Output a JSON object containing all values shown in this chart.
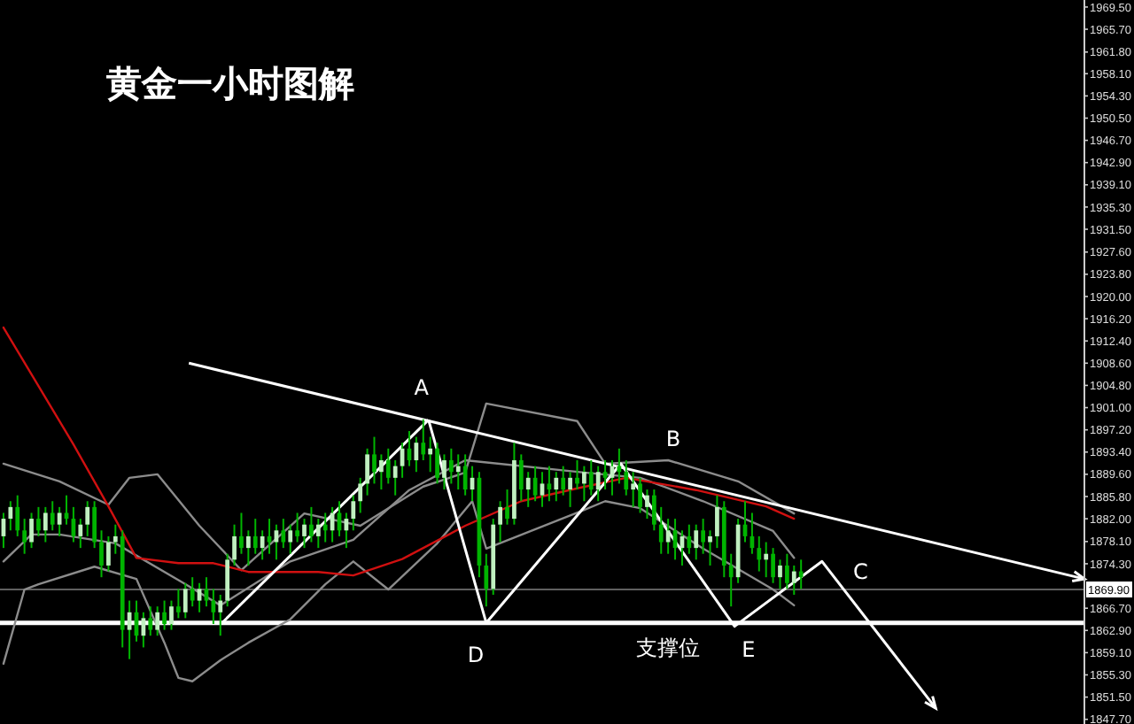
{
  "chart_data": {
    "type": "candlestick",
    "title": "黄金一小时图解",
    "tick_labels": "y",
    "categories": [
      null,
      null,
      null,
      null,
      null,
      null,
      null,
      null,
      null,
      null,
      null,
      null,
      null,
      null,
      null,
      null,
      null,
      null,
      null,
      null,
      null,
      null,
      null,
      null,
      null,
      null,
      null,
      null,
      null,
      null,
      null,
      null,
      null,
      null,
      null,
      null,
      null,
      null,
      null,
      null,
      null,
      null,
      null,
      null,
      null,
      null,
      null,
      null,
      null,
      null,
      null,
      null,
      null,
      null,
      null,
      null,
      null,
      null,
      null,
      null,
      null,
      null,
      null,
      null,
      null,
      null,
      null,
      null,
      null,
      null,
      null,
      null,
      null,
      null,
      null,
      null,
      null,
      null,
      null,
      null,
      null,
      null,
      null,
      null,
      null,
      null,
      null,
      null,
      null,
      null,
      null,
      null,
      null,
      null,
      null,
      null,
      null,
      null,
      null,
      null,
      null,
      null,
      null,
      null,
      null,
      null,
      null,
      null,
      null,
      null,
      null,
      null,
      null,
      null,
      null,
      null,
      null,
      null,
      null,
      null,
      null,
      null,
      null,
      null,
      null,
      null,
      null,
      null,
      null,
      null,
      null,
      null,
      null,
      null,
      null,
      null,
      null,
      null,
      null,
      null,
      null,
      null,
      null,
      null,
      null,
      null,
      null,
      null,
      null,
      null,
      null,
      null,
      null,
      null,
      null
    ],
    "ylim": [
      1846.9,
      1970.7
    ],
    "yticks": [
      {
        "value": 1969.5,
        "label": "1969.50"
      },
      {
        "value": 1965.7,
        "label": "1965.70"
      },
      {
        "value": 1961.8,
        "label": "1961.80"
      },
      {
        "value": 1958.1,
        "label": "1958.10"
      },
      {
        "value": 1954.3,
        "label": "1954.30"
      },
      {
        "value": 1950.5,
        "label": "1950.50"
      },
      {
        "value": 1946.7,
        "label": "1946.70"
      },
      {
        "value": 1942.9,
        "label": "1942.90"
      },
      {
        "value": 1939.1,
        "label": "1939.10"
      },
      {
        "value": 1935.3,
        "label": "1935.30"
      },
      {
        "value": 1931.5,
        "label": "1931.50"
      },
      {
        "value": 1927.6,
        "label": "1927.60"
      },
      {
        "value": 1923.8,
        "label": "1923.80"
      },
      {
        "value": 1920,
        "label": "1920.00"
      },
      {
        "value": 1916.2,
        "label": "1916.20"
      },
      {
        "value": 1912.4,
        "label": "1912.40"
      },
      {
        "value": 1908.6,
        "label": "1908.60"
      },
      {
        "value": 1904.8,
        "label": "1904.80"
      },
      {
        "value": 1901,
        "label": "1901.00"
      },
      {
        "value": 1897.2,
        "label": "1897.20"
      },
      {
        "value": 1893.4,
        "label": "1893.40"
      },
      {
        "value": 1889.6,
        "label": "1889.60"
      },
      {
        "value": 1885.8,
        "label": "1885.80"
      },
      {
        "value": 1882,
        "label": "1882.00"
      },
      {
        "value": 1878.1,
        "label": "1878.10"
      },
      {
        "value": 1874.3,
        "label": "1874.30"
      },
      {
        "value": 1866.7,
        "label": "1866.70"
      },
      {
        "value": 1862.9,
        "label": "1862.90"
      },
      {
        "value": 1859.1,
        "label": "1859.10"
      },
      {
        "value": 1855.3,
        "label": "1855.30"
      },
      {
        "value": 1851.5,
        "label": "1851.50"
      },
      {
        "value": 1847.7,
        "label": "1847.70"
      }
    ],
    "ref_lines": [
      {
        "axis": "y",
        "value": 1869.9,
        "label": "1869.90",
        "color": "#808080"
      },
      {
        "axis": "y",
        "value": 1864.2,
        "label": "支撑位",
        "color": "#ffffff"
      }
    ],
    "annotations": [
      "A",
      "B",
      "C",
      "D",
      "E"
    ],
    "series": [
      {
        "type": "line",
        "color": "#8c8c8c",
        "values": [
          1891.4,
          null,
          null,
          null,
          null,
          null,
          null,
          null,
          1888.4,
          null,
          null,
          null,
          null,
          null,
          null,
          1884.4,
          null,
          null,
          1889.0,
          null,
          null,
          null,
          1889.6,
          null,
          null,
          null,
          null,
          null,
          1880.8,
          null,
          null,
          null,
          null,
          null,
          1873.2,
          null,
          null,
          null,
          null,
          null,
          null,
          null,
          null,
          1882.9,
          null,
          null,
          null,
          null,
          null,
          null,
          null,
          1880.8,
          null,
          null,
          null,
          null,
          null,
          null,
          null,
          null,
          1887.5,
          null,
          null,
          null,
          null,
          null,
          1889.9,
          null,
          null,
          1901.7,
          null,
          null,
          null,
          null,
          null,
          null,
          null,
          null,
          null,
          null,
          null,
          null,
          1898.7,
          null,
          null,
          null,
          1891.4,
          null,
          null,
          null,
          null,
          null,
          null,
          null,
          null,
          1892.0,
          null,
          null,
          null,
          null,
          null,
          null,
          null,
          null,
          null,
          1888.4,
          null,
          null,
          null,
          null,
          null,
          null,
          null,
          1882.9,
          null,
          null,
          null,
          null,
          null,
          null,
          null,
          null,
          null,
          null,
          null,
          null,
          null,
          null,
          null,
          null,
          null,
          null,
          null,
          null,
          null,
          null,
          null,
          null,
          null,
          null,
          null,
          null,
          null,
          null,
          null,
          null,
          null,
          null,
          null,
          null,
          null,
          null,
          null,
          null,
          null
        ]
      },
      {
        "type": "line",
        "color": "#8c8c8c",
        "values": [
          1874.7,
          null,
          null,
          null,
          1879.3,
          null,
          null,
          null,
          1879.3,
          null,
          null,
          null,
          null,
          null,
          null,
          null,
          1877.8,
          null,
          null,
          null,
          null,
          null,
          null,
          null,
          null,
          null,
          1870.8,
          null,
          null,
          null,
          null,
          1867.2,
          null,
          null,
          null,
          null,
          null,
          null,
          null,
          null,
          null,
          1874.7,
          null,
          null,
          null,
          null,
          null,
          null,
          null,
          null,
          1878.4,
          null,
          null,
          null,
          null,
          null,
          null,
          null,
          1886.9,
          null,
          null,
          null,
          null,
          null,
          null,
          null,
          1892.0,
          null,
          null,
          null,
          null,
          null,
          null,
          null,
          null,
          null,
          null,
          null,
          null,
          null,
          null,
          null,
          null,
          1889.9,
          null,
          null,
          null,
          null,
          null,
          null,
          null,
          1889.0,
          null,
          null,
          null,
          null,
          null,
          null,
          null,
          null,
          1885.0,
          null,
          null,
          null,
          null,
          null,
          null,
          null,
          null,
          null,
          1879.9,
          null,
          null,
          1875.3,
          null,
          null,
          null,
          null,
          null,
          null,
          null,
          null,
          null,
          null,
          null,
          null,
          null,
          null,
          null,
          null,
          null,
          null,
          null,
          null,
          null,
          null,
          null,
          null,
          null,
          null,
          null,
          null,
          null,
          null,
          null,
          null,
          null,
          null,
          null,
          null,
          null,
          null,
          null,
          null,
          null
        ]
      },
      {
        "type": "line",
        "color": "#8c8c8c",
        "values": [
          1857.2,
          null,
          null,
          1869.9,
          null,
          1870.8,
          null,
          null,
          null,
          null,
          null,
          null,
          null,
          1873.8,
          null,
          null,
          null,
          null,
          null,
          1871.7,
          null,
          null,
          null,
          1860.8,
          null,
          1854.8,
          null,
          1854.2,
          null,
          null,
          null,
          1857.8,
          null,
          null,
          null,
          1860.8,
          null,
          null,
          null,
          null,
          null,
          1864.8,
          null,
          null,
          null,
          null,
          1870.8,
          null,
          null,
          null,
          1874.7,
          null,
          null,
          null,
          null,
          1869.9,
          null,
          null,
          null,
          null,
          null,
          null,
          1877.8,
          null,
          null,
          null,
          null,
          1885.0,
          null,
          1876.9,
          null,
          null,
          null,
          null,
          null,
          null,
          null,
          null,
          null,
          null,
          null,
          null,
          null,
          1883.5,
          null,
          null,
          1885.0,
          null,
          null,
          null,
          null,
          1883.8,
          null,
          null,
          null,
          null,
          null,
          null,
          null,
          null,
          1876.9,
          null,
          null,
          null,
          null,
          null,
          null,
          null,
          null,
          null,
          1869.9,
          null,
          null,
          1867.2,
          null,
          null,
          null,
          null,
          null,
          null,
          null,
          null,
          null,
          null,
          null,
          null,
          null,
          null,
          null,
          null,
          null,
          null,
          null,
          null,
          null,
          null,
          null,
          null,
          null,
          null,
          null,
          null,
          null,
          null,
          null,
          null,
          null,
          null,
          null,
          null,
          null,
          null,
          null,
          null,
          null
        ]
      },
      {
        "type": "line",
        "color": "#d01010",
        "values": [
          1914.7,
          null,
          null,
          null,
          null,
          1904.7,
          null,
          null,
          null,
          null,
          1894.7,
          null,
          null,
          null,
          null,
          1884.1,
          null,
          null,
          null,
          1875.3,
          null,
          null,
          null,
          null,
          null,
          1874.4,
          null,
          null,
          null,
          null,
          1874.4,
          null,
          null,
          null,
          null,
          1872.9,
          null,
          null,
          null,
          null,
          null,
          null,
          null,
          null,
          null,
          1872.9,
          null,
          null,
          null,
          null,
          1872.3,
          null,
          null,
          null,
          null,
          null,
          null,
          1875.1,
          null,
          null,
          null,
          null,
          null,
          null,
          null,
          null,
          1880.8,
          null,
          null,
          null,
          null,
          null,
          null,
          null,
          1885.0,
          null,
          null,
          null,
          null,
          null,
          null,
          null,
          1887.2,
          null,
          null,
          null,
          null,
          null,
          null,
          1889.0,
          null,
          null,
          null,
          null,
          null,
          null,
          null,
          null,
          null,
          1886.9,
          null,
          null,
          null,
          null,
          null,
          null,
          null,
          null,
          null,
          1884.1,
          null,
          null,
          null,
          1882.0,
          null,
          null,
          null,
          null,
          null,
          null,
          null,
          null,
          null,
          null,
          null,
          null,
          null,
          null,
          null,
          null,
          null,
          null,
          null,
          null,
          null,
          null,
          null,
          null,
          null,
          null,
          null,
          null,
          null,
          null,
          null,
          null,
          null,
          null,
          null,
          null,
          null,
          null,
          null,
          null,
          null
        ]
      },
      {
        "color": "#00b400",
        "colors": [
          "#c0f0c0",
          "#c0f0c0",
          "#00b400",
          "#00b400",
          "#c0f0c0",
          "#00b400",
          "#c0f0c0",
          "#00b400",
          "#c0f0c0",
          "#00b400",
          "#00b400",
          "#c0f0c0",
          "#c0f0c0",
          "#00b400",
          "#00b400",
          "#c0f0c0",
          "#c0f0c0",
          "#00b400",
          "#c0f0c0",
          "#00b400",
          "#c0f0c0",
          "#00b400",
          "#c0f0c0",
          "#00b400",
          "#c0f0c0",
          "#00b400",
          "#c0f0c0",
          "#00b400",
          "#c0f0c0",
          "#00b400",
          "#00b400",
          "#c0f0c0",
          "#c0f0c0",
          "#c0f0c0",
          "#00b400",
          "#c0f0c0",
          "#00b400",
          "#c0f0c0",
          "#00b400",
          "#c0f0c0",
          "#00b400",
          "#c0f0c0",
          "#00b400",
          "#c0f0c0",
          "#00b400",
          "#c0f0c0",
          "#00b400",
          "#c0f0c0",
          "#00b400",
          "#c0f0c0",
          "#c0f0c0",
          "#c0f0c0",
          "#c0f0c0",
          "#00b400",
          "#c0f0c0",
          "#00b400",
          "#c0f0c0",
          "#c0f0c0",
          "#00b400",
          "#c0f0c0",
          "#00b400",
          "#c0f0c0",
          "#00b400",
          "#c0f0c0",
          "#00b400",
          "#c0f0c0",
          "#00b400",
          "#c0f0c0",
          "#00b400",
          "#00b400",
          "#c0f0c0",
          "#c0f0c0",
          "#00b400",
          "#c0f0c0",
          "#00b400",
          "#c0f0c0",
          "#00b400",
          "#c0f0c0",
          "#00b400",
          "#c0f0c0",
          "#00b400",
          "#c0f0c0",
          "#00b400",
          "#c0f0c0",
          "#00b400",
          "#c0f0c0",
          "#00b400",
          "#c0f0c0",
          "#00b400",
          "#00b400",
          "#c0f0c0",
          "#00b400",
          "#c0f0c0",
          "#00b400",
          "#00b400",
          "#c0f0c0",
          "#00b400",
          "#c0f0c0",
          "#00b400",
          "#c0f0c0",
          "#00b400",
          "#c0f0c0",
          "#c0f0c0",
          "#00b400",
          "#00b400",
          "#c0f0c0",
          "#00b400",
          "#00b400",
          "#00b400",
          "#c0f0c0",
          "#00b400",
          "#c0f0c0",
          "#00b400",
          "#c0f0c0",
          "#00b400",
          null,
          null,
          null,
          null,
          null,
          null,
          null,
          null,
          null,
          null,
          null,
          null,
          null,
          null,
          null,
          null,
          null,
          null,
          null,
          null,
          null,
          null,
          null,
          null,
          null,
          null,
          null,
          null,
          null,
          null,
          null,
          null,
          null,
          null,
          null,
          null,
          null,
          null,
          null,
          null
        ],
        "ohlc": [
          [
            1879,
            1883,
            1877,
            1882
          ],
          [
            1882,
            1885,
            1880,
            1884
          ],
          [
            1884,
            1886,
            1879,
            1880
          ],
          [
            1880,
            1882,
            1876,
            1878
          ],
          [
            1878,
            1883,
            1877,
            1882
          ],
          [
            1882,
            1884,
            1879,
            1880
          ],
          [
            1880,
            1884,
            1878,
            1883
          ],
          [
            1883,
            1885,
            1880,
            1881
          ],
          [
            1881,
            1884,
            1879,
            1883
          ],
          [
            1883,
            1886,
            1881,
            1882
          ],
          [
            1882,
            1884,
            1878,
            1879
          ],
          [
            1879,
            1882,
            1877,
            1881
          ],
          [
            1881,
            1885,
            1879,
            1884
          ],
          [
            1884,
            1885,
            1877,
            1878
          ],
          [
            1878,
            1880,
            1872,
            1874
          ],
          [
            1874,
            1879,
            1873,
            1878
          ],
          [
            1878,
            1881,
            1876,
            1879
          ],
          [
            1879,
            1880,
            1860,
            1863
          ],
          [
            1863,
            1868,
            1858,
            1866
          ],
          [
            1866,
            1868,
            1861,
            1862
          ],
          [
            1862,
            1866,
            1860,
            1865
          ],
          [
            1865,
            1867,
            1862,
            1863
          ],
          [
            1863,
            1867,
            1862,
            1866
          ],
          [
            1866,
            1868,
            1863,
            1864
          ],
          [
            1864,
            1868,
            1863,
            1867
          ],
          [
            1867,
            1870,
            1865,
            1866
          ],
          [
            1866,
            1871,
            1865,
            1870
          ],
          [
            1870,
            1872,
            1867,
            1868
          ],
          [
            1868,
            1871,
            1866,
            1870
          ],
          [
            1870,
            1872,
            1867,
            1868
          ],
          [
            1868,
            1870,
            1864,
            1866
          ],
          [
            1866,
            1869,
            1862,
            1868
          ],
          [
            1868,
            1876,
            1867,
            1875
          ],
          [
            1875,
            1881,
            1874,
            1879
          ],
          [
            1879,
            1883,
            1876,
            1877
          ],
          [
            1877,
            1880,
            1874,
            1879
          ],
          [
            1879,
            1882,
            1876,
            1877
          ],
          [
            1877,
            1880,
            1875,
            1879
          ],
          [
            1879,
            1882,
            1876,
            1878
          ],
          [
            1878,
            1881,
            1875,
            1880
          ],
          [
            1880,
            1882,
            1877,
            1878
          ],
          [
            1878,
            1881,
            1876,
            1880
          ],
          [
            1880,
            1883,
            1878,
            1879
          ],
          [
            1879,
            1882,
            1877,
            1881
          ],
          [
            1881,
            1884,
            1878,
            1879
          ],
          [
            1879,
            1882,
            1877,
            1881
          ],
          [
            1881,
            1883,
            1878,
            1880
          ],
          [
            1880,
            1884,
            1878,
            1883
          ],
          [
            1883,
            1885,
            1879,
            1880
          ],
          [
            1880,
            1883,
            1877,
            1882
          ],
          [
            1882,
            1886,
            1880,
            1885
          ],
          [
            1885,
            1889,
            1883,
            1888
          ],
          [
            1888,
            1894,
            1886,
            1893
          ],
          [
            1893,
            1896,
            1888,
            1890
          ],
          [
            1890,
            1893,
            1887,
            1892
          ],
          [
            1892,
            1894,
            1888,
            1889
          ],
          [
            1889,
            1892,
            1886,
            1891
          ],
          [
            1891,
            1895,
            1889,
            1894
          ],
          [
            1894,
            1897,
            1891,
            1892
          ],
          [
            1892,
            1896,
            1890,
            1895
          ],
          [
            1895,
            1899,
            1892,
            1893
          ],
          [
            1893,
            1896,
            1890,
            1894
          ],
          [
            1894,
            1895,
            1888,
            1889
          ],
          [
            1889,
            1893,
            1887,
            1892
          ],
          [
            1892,
            1894,
            1888,
            1890
          ],
          [
            1890,
            1893,
            1887,
            1891
          ],
          [
            1891,
            1893,
            1886,
            1887
          ],
          [
            1887,
            1891,
            1885,
            1889
          ],
          [
            1889,
            1890,
            1872,
            1874
          ],
          [
            1874,
            1876,
            1867,
            1870
          ],
          [
            1870,
            1882,
            1869,
            1881
          ],
          [
            1881,
            1885,
            1878,
            1884
          ],
          [
            1884,
            1887,
            1881,
            1882
          ],
          [
            1882,
            1895,
            1881,
            1892
          ],
          [
            1892,
            1893,
            1885,
            1887
          ],
          [
            1887,
            1890,
            1884,
            1889
          ],
          [
            1889,
            1891,
            1885,
            1886
          ],
          [
            1886,
            1890,
            1884,
            1888
          ],
          [
            1888,
            1891,
            1885,
            1887
          ],
          [
            1887,
            1890,
            1885,
            1889
          ],
          [
            1889,
            1891,
            1886,
            1887
          ],
          [
            1887,
            1890,
            1884,
            1889
          ],
          [
            1889,
            1892,
            1887,
            1888
          ],
          [
            1888,
            1891,
            1885,
            1890
          ],
          [
            1890,
            1892,
            1886,
            1887
          ],
          [
            1887,
            1891,
            1885,
            1890
          ],
          [
            1890,
            1892,
            1887,
            1889
          ],
          [
            1889,
            1892,
            1886,
            1891
          ],
          [
            1891,
            1894,
            1888,
            1890
          ],
          [
            1890,
            1892,
            1886,
            1887
          ],
          [
            1887,
            1890,
            1884,
            1888
          ],
          [
            1888,
            1889,
            1883,
            1884
          ],
          [
            1884,
            1887,
            1882,
            1886
          ],
          [
            1886,
            1887,
            1880,
            1881
          ],
          [
            1881,
            1884,
            1876,
            1878
          ],
          [
            1878,
            1882,
            1876,
            1880
          ],
          [
            1880,
            1882,
            1875,
            1877
          ],
          [
            1877,
            1880,
            1874,
            1879
          ],
          [
            1879,
            1881,
            1876,
            1877
          ],
          [
            1877,
            1881,
            1875,
            1880
          ],
          [
            1880,
            1882,
            1876,
            1878
          ],
          [
            1878,
            1880,
            1874,
            1879
          ],
          [
            1879,
            1886,
            1877,
            1884
          ],
          [
            1884,
            1885,
            1872,
            1874
          ],
          [
            1874,
            1876,
            1867,
            1872
          ],
          [
            1872,
            1882,
            1871,
            1881
          ],
          [
            1881,
            1885,
            1878,
            1879
          ],
          [
            1879,
            1883,
            1876,
            1877
          ],
          [
            1877,
            1879,
            1873,
            1875
          ],
          [
            1875,
            1878,
            1872,
            1876
          ],
          [
            1876,
            1877,
            1871,
            1872
          ],
          [
            1872,
            1875,
            1870,
            1874
          ],
          [
            1874,
            1876,
            1870,
            1871
          ],
          [
            1871,
            1874,
            1869,
            1873
          ],
          [
            1873,
            1875,
            1870,
            1872
          ],
          null,
          null,
          null,
          null,
          null,
          null,
          null,
          null,
          null,
          null,
          null,
          null,
          null,
          null,
          null,
          null,
          null,
          null,
          null,
          null,
          null,
          null,
          null,
          null,
          null,
          null,
          null,
          null,
          null,
          null,
          null,
          null,
          null,
          null,
          null,
          null,
          null,
          null,
          null,
          null
        ]
      }
    ]
  }
}
